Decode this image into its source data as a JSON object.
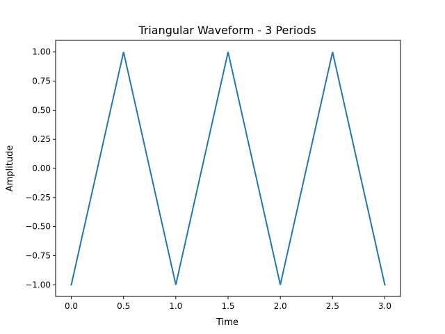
{
  "chart_data": {
    "type": "line",
    "title": "Triangular Waveform - 3 Periods",
    "xlabel": "Time",
    "ylabel": "Amplitude",
    "xlim": [
      -0.15,
      3.15
    ],
    "ylim": [
      -1.1,
      1.1
    ],
    "x_ticks": [
      0.0,
      0.5,
      1.0,
      1.5,
      2.0,
      2.5,
      3.0
    ],
    "x_tick_labels": [
      "0.0",
      "0.5",
      "1.0",
      "1.5",
      "2.0",
      "2.5",
      "3.0"
    ],
    "y_ticks": [
      -1.0,
      -0.75,
      -0.5,
      -0.25,
      0.0,
      0.25,
      0.5,
      0.75,
      1.0
    ],
    "y_tick_labels": [
      "−1.00",
      "−0.75",
      "−0.50",
      "−0.25",
      "0.00",
      "0.25",
      "0.50",
      "0.75",
      "1.00"
    ],
    "grid": false,
    "legend": "none",
    "series": [
      {
        "color": "#1f77b4",
        "x": [
          0.0,
          0.5,
          1.0,
          1.5,
          2.0,
          2.5,
          3.0
        ],
        "y": [
          -1.0,
          1.0,
          -1.0,
          1.0,
          -1.0,
          1.0,
          -1.0
        ]
      }
    ]
  }
}
